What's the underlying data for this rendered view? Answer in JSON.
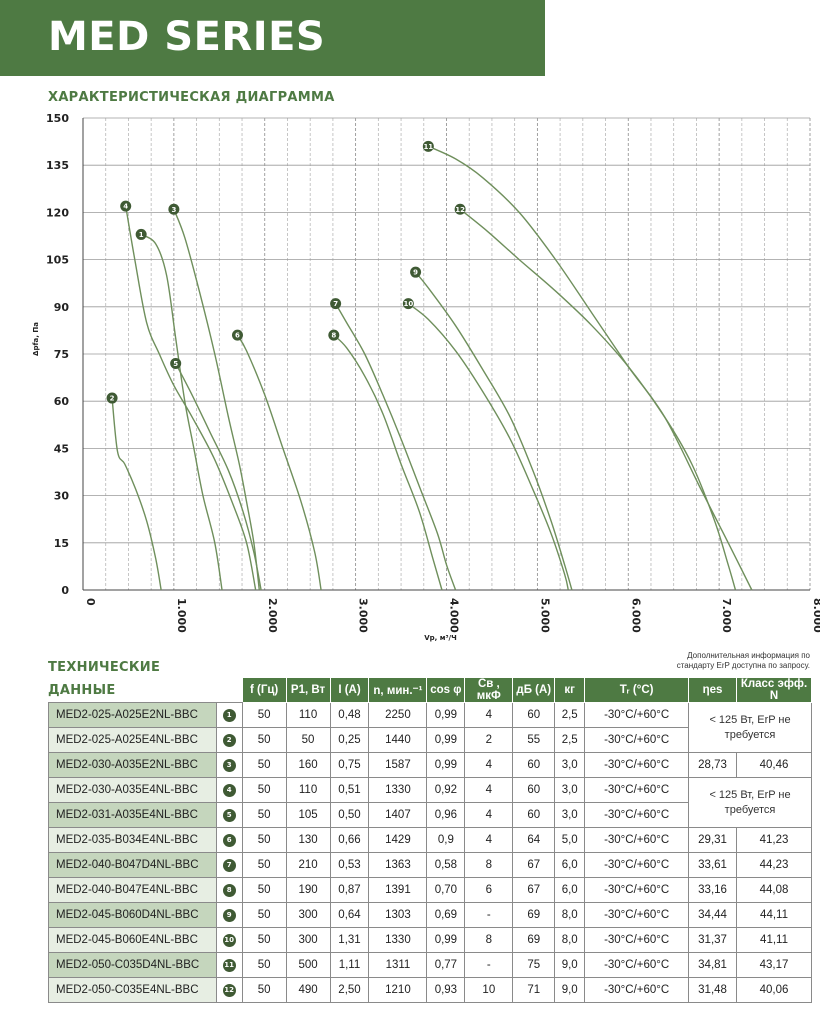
{
  "header": {
    "title": "MED SERIES"
  },
  "chart": {
    "title": "ХАРАКТЕРИСТИЧЕСКАЯ ДИАГРАММА"
  },
  "chart_data": {
    "type": "line",
    "ylabel": "Δpfa, Па",
    "xlabel": "Vр, м³/Ч",
    "xlim": [
      0,
      8000
    ],
    "ylim": [
      0,
      150
    ],
    "x_ticks": [
      "0",
      "1.000",
      "2.000",
      "3.000",
      "4.000",
      "5.000",
      "6.000",
      "7.000",
      "8.000"
    ],
    "y_ticks": [
      "0",
      "15",
      "30",
      "45",
      "60",
      "75",
      "90",
      "105",
      "120",
      "135",
      "150"
    ],
    "grid": true,
    "series": [
      {
        "name": "1",
        "points": [
          [
            640,
            113
          ],
          [
            800,
            110
          ],
          [
            920,
            100
          ],
          [
            1020,
            80
          ],
          [
            1120,
            60
          ],
          [
            1220,
            45
          ],
          [
            1320,
            30
          ],
          [
            1450,
            15
          ],
          [
            1530,
            0
          ]
        ]
      },
      {
        "name": "2",
        "points": [
          [
            320,
            61
          ],
          [
            380,
            44
          ],
          [
            460,
            40
          ],
          [
            580,
            32
          ],
          [
            700,
            22
          ],
          [
            800,
            10
          ],
          [
            860,
            0
          ]
        ]
      },
      {
        "name": "3",
        "points": [
          [
            1000,
            121
          ],
          [
            1120,
            112
          ],
          [
            1280,
            95
          ],
          [
            1450,
            75
          ],
          [
            1600,
            55
          ],
          [
            1720,
            40
          ],
          [
            1800,
            28
          ],
          [
            1880,
            15
          ],
          [
            1940,
            0
          ]
        ]
      },
      {
        "name": "4",
        "points": [
          [
            470,
            122
          ],
          [
            570,
            105
          ],
          [
            700,
            85
          ],
          [
            840,
            75
          ],
          [
            1000,
            65
          ],
          [
            1200,
            55
          ],
          [
            1440,
            42
          ],
          [
            1640,
            28
          ],
          [
            1800,
            15
          ],
          [
            1900,
            0
          ]
        ]
      },
      {
        "name": "5",
        "points": [
          [
            1020,
            72
          ],
          [
            1200,
            62
          ],
          [
            1400,
            50
          ],
          [
            1600,
            38
          ],
          [
            1760,
            25
          ],
          [
            1880,
            12
          ],
          [
            1960,
            0
          ]
        ]
      },
      {
        "name": "6",
        "points": [
          [
            1700,
            81
          ],
          [
            1800,
            76
          ],
          [
            2000,
            62
          ],
          [
            2200,
            45
          ],
          [
            2400,
            28
          ],
          [
            2550,
            12
          ],
          [
            2620,
            0
          ]
        ]
      },
      {
        "name": "7",
        "points": [
          [
            2780,
            91
          ],
          [
            2900,
            85
          ],
          [
            3100,
            75
          ],
          [
            3300,
            62
          ],
          [
            3500,
            48
          ],
          [
            3700,
            33
          ],
          [
            3900,
            18
          ],
          [
            4000,
            8
          ],
          [
            4100,
            0
          ]
        ]
      },
      {
        "name": "8",
        "points": [
          [
            2760,
            81
          ],
          [
            2900,
            77
          ],
          [
            3100,
            68
          ],
          [
            3300,
            56
          ],
          [
            3500,
            40
          ],
          [
            3700,
            25
          ],
          [
            3850,
            10
          ],
          [
            3950,
            0
          ]
        ]
      },
      {
        "name": "9",
        "points": [
          [
            3660,
            101
          ],
          [
            3800,
            96
          ],
          [
            4100,
            84
          ],
          [
            4400,
            70
          ],
          [
            4700,
            55
          ],
          [
            4950,
            38
          ],
          [
            5150,
            22
          ],
          [
            5300,
            8
          ],
          [
            5380,
            0
          ]
        ]
      },
      {
        "name": "10",
        "points": [
          [
            3580,
            91
          ],
          [
            3800,
            86
          ],
          [
            4100,
            76
          ],
          [
            4400,
            63
          ],
          [
            4700,
            48
          ],
          [
            4950,
            32
          ],
          [
            5150,
            18
          ],
          [
            5300,
            5
          ],
          [
            5340,
            0
          ]
        ]
      },
      {
        "name": "11",
        "points": [
          [
            3800,
            141
          ],
          [
            4100,
            137
          ],
          [
            4400,
            131
          ],
          [
            4800,
            120
          ],
          [
            5200,
            105
          ],
          [
            5600,
            88
          ],
          [
            6000,
            71
          ],
          [
            6400,
            55
          ],
          [
            6800,
            32
          ],
          [
            7100,
            15
          ],
          [
            7360,
            0
          ]
        ]
      },
      {
        "name": "12",
        "points": [
          [
            4150,
            121
          ],
          [
            4450,
            114
          ],
          [
            4800,
            105
          ],
          [
            5200,
            95
          ],
          [
            5600,
            84
          ],
          [
            6000,
            71
          ],
          [
            6400,
            55
          ],
          [
            6700,
            40
          ],
          [
            6950,
            22
          ],
          [
            7100,
            8
          ],
          [
            7180,
            0
          ]
        ]
      }
    ]
  },
  "tech": {
    "title_line1": "ТЕХНИЧЕСКИЕ",
    "title_line2": "ДАННЫЕ",
    "note_line1": "Дополнительная информация по",
    "note_line2": "стандарту ErP доступна по запросу.",
    "headers": {
      "f": "f (Гц)",
      "p1": "P1, Вт",
      "i": "I (A)",
      "n": "n, мин.⁻¹",
      "cos": "cos φ",
      "cb": "Cв , мкФ",
      "db": "дБ (A)",
      "kg": "кг",
      "t": "Tᵣ (°C)",
      "eta": "ηes",
      "class": "Класс эфф. N"
    },
    "merged_note_a": "< 125 Вт, ErP не требуется",
    "merged_note_b": "< 125 Вт, ErP не требуется",
    "rows": [
      {
        "model": "MED2-025-A025E2NL-BBC",
        "num": "1",
        "f": "50",
        "p1": "110",
        "i": "0,48",
        "n": "2250",
        "cos": "0,99",
        "cb": "4",
        "db": "60",
        "kg": "2,5",
        "t": "-30°C/+60°C",
        "eta": "",
        "class": ""
      },
      {
        "model": "MED2-025-A025E4NL-BBC",
        "num": "2",
        "f": "50",
        "p1": "50",
        "i": "0,25",
        "n": "1440",
        "cos": "0,99",
        "cb": "2",
        "db": "55",
        "kg": "2,5",
        "t": "-30°C/+60°C",
        "eta": "",
        "class": ""
      },
      {
        "model": "MED2-030-A035E2NL-BBC",
        "num": "3",
        "f": "50",
        "p1": "160",
        "i": "0,75",
        "n": "1587",
        "cos": "0,99",
        "cb": "4",
        "db": "60",
        "kg": "3,0",
        "t": "-30°C/+60°C",
        "eta": "28,73",
        "class": "40,46"
      },
      {
        "model": "MED2-030-A035E4NL-BBC",
        "num": "4",
        "f": "50",
        "p1": "110",
        "i": "0,51",
        "n": "1330",
        "cos": "0,92",
        "cb": "4",
        "db": "60",
        "kg": "3,0",
        "t": "-30°C/+60°C",
        "eta": "",
        "class": ""
      },
      {
        "model": "MED2-031-A035E4NL-BBC",
        "num": "5",
        "f": "50",
        "p1": "105",
        "i": "0,50",
        "n": "1407",
        "cos": "0,96",
        "cb": "4",
        "db": "60",
        "kg": "3,0",
        "t": "-30°C/+60°C",
        "eta": "",
        "class": ""
      },
      {
        "model": "MED2-035-B034E4NL-BBC",
        "num": "6",
        "f": "50",
        "p1": "130",
        "i": "0,66",
        "n": "1429",
        "cos": "0,9",
        "cb": "4",
        "db": "64",
        "kg": "5,0",
        "t": "-30°C/+60°C",
        "eta": "29,31",
        "class": "41,23"
      },
      {
        "model": "MED2-040-B047D4NL-BBC",
        "num": "7",
        "f": "50",
        "p1": "210",
        "i": "0,53",
        "n": "1363",
        "cos": "0,58",
        "cb": "8",
        "db": "67",
        "kg": "6,0",
        "t": "-30°C/+60°C",
        "eta": "33,61",
        "class": "44,23"
      },
      {
        "model": "MED2-040-B047E4NL-BBC",
        "num": "8",
        "f": "50",
        "p1": "190",
        "i": "0,87",
        "n": "1391",
        "cos": "0,70",
        "cb": "6",
        "db": "67",
        "kg": "6,0",
        "t": "-30°C/+60°C",
        "eta": "33,16",
        "class": "44,08"
      },
      {
        "model": "MED2-045-B060D4NL-BBC",
        "num": "9",
        "f": "50",
        "p1": "300",
        "i": "0,64",
        "n": "1303",
        "cos": "0,69",
        "cb": "-",
        "db": "69",
        "kg": "8,0",
        "t": "-30°C/+60°C",
        "eta": "34,44",
        "class": "44,11"
      },
      {
        "model": "MED2-045-B060E4NL-BBC",
        "num": "10",
        "f": "50",
        "p1": "300",
        "i": "1,31",
        "n": "1330",
        "cos": "0,99",
        "cb": "8",
        "db": "69",
        "kg": "8,0",
        "t": "-30°C/+60°C",
        "eta": "31,37",
        "class": "41,11"
      },
      {
        "model": "MED2-050-C035D4NL-BBC",
        "num": "11",
        "f": "50",
        "p1": "500",
        "i": "1,11",
        "n": "1311",
        "cos": "0,77",
        "cb": "-",
        "db": "75",
        "kg": "9,0",
        "t": "-30°C/+60°C",
        "eta": "34,81",
        "class": "43,17"
      },
      {
        "model": "MED2-050-C035E4NL-BBC",
        "num": "12",
        "f": "50",
        "p1": "490",
        "i": "2,50",
        "n": "1210",
        "cos": "0,93",
        "cb": "10",
        "db": "71",
        "kg": "9,0",
        "t": "-30°C/+60°C",
        "eta": "31,48",
        "class": "40,06"
      }
    ]
  },
  "colors": {
    "accent": "#4e7a43",
    "curve": "#6f8f5c",
    "marker": "#3f5a34"
  }
}
